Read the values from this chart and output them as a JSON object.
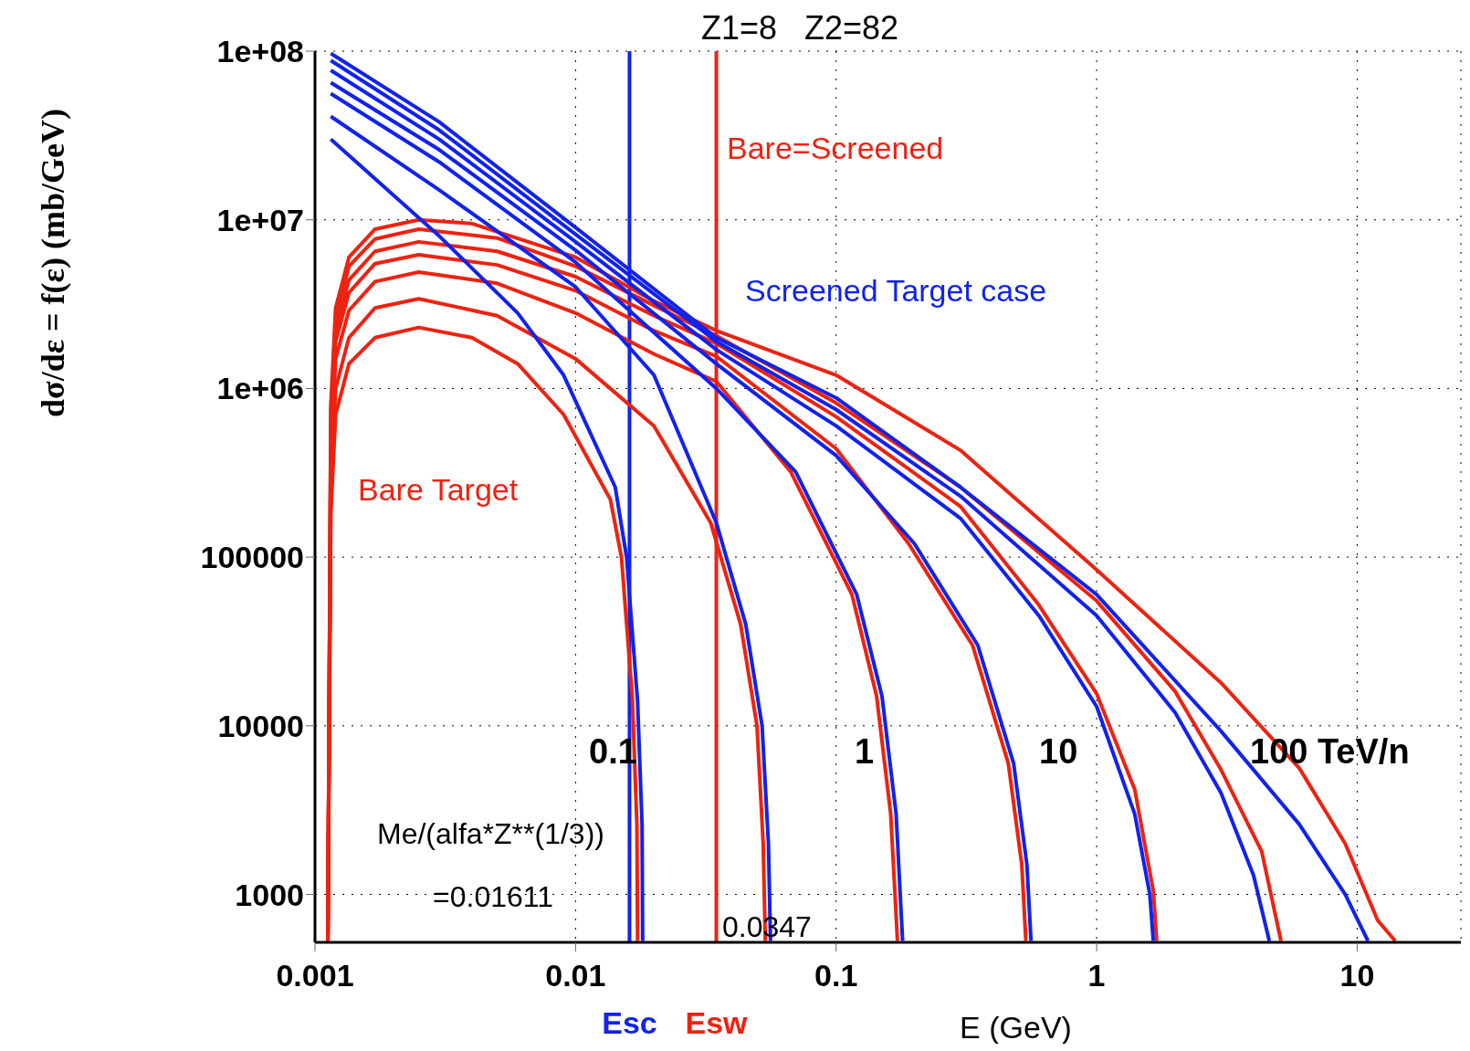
{
  "chart_data": {
    "type": "line",
    "title": "Z1=8   Z2=82",
    "xlabel": "E (GeV)",
    "ylabel": "dσ/dε = f(ε) (mb/GeV)",
    "log": "xy",
    "grid": true,
    "marker": "none",
    "line_style": "solid",
    "xlim": [
      0.001,
      25
    ],
    "ylim": [
      520,
      100000000
    ],
    "xticks": [
      0.001,
      0.01,
      0.1,
      1,
      10
    ],
    "yticks": [
      {
        "value": 100000000,
        "label": "1e+08"
      },
      {
        "value": 10000000,
        "label": "1e+07"
      },
      {
        "value": 1000000,
        "label": "1e+06"
      },
      100000,
      10000,
      1000
    ],
    "series": [
      {
        "color": "#ee2211",
        "x": [
          0.00112,
          0.00115,
          0.0012,
          0.00135,
          0.0017,
          0.0025,
          0.004,
          0.006,
          0.009,
          0.0136,
          0.015,
          0.0165,
          0.0172,
          0.0173
        ],
        "values": [
          530,
          180000,
          700000,
          1400000,
          2000000,
          2300000,
          2000000,
          1400000,
          700000,
          220000,
          100000,
          15000,
          2600,
          530
        ]
      },
      {
        "color": "#ee2211",
        "x": [
          0.00112,
          0.00115,
          0.0012,
          0.00135,
          0.0017,
          0.0025,
          0.005,
          0.01,
          0.02,
          0.033,
          0.043,
          0.0497,
          0.0525,
          0.0535
        ],
        "values": [
          530,
          270000,
          1000000,
          2000000,
          3000000,
          3400000,
          2700000,
          1500000,
          600000,
          160000,
          40000,
          10000,
          2000,
          530
        ]
      },
      {
        "color": "#ee2211",
        "x": [
          0.00112,
          0.00115,
          0.0012,
          0.00135,
          0.0017,
          0.0025,
          0.005,
          0.01,
          0.02,
          0.0347,
          0.067,
          0.115,
          0.143,
          0.162,
          0.172
        ],
        "values": [
          530,
          390000,
          1500000,
          2900000,
          4300000,
          4900000,
          4200000,
          2800000,
          1600000,
          1100000,
          320000,
          60000,
          15000,
          3000,
          530
        ]
      },
      {
        "color": "#ee2211",
        "x": [
          0.00112,
          0.00115,
          0.0012,
          0.00135,
          0.0017,
          0.0025,
          0.005,
          0.01,
          0.02,
          0.0347,
          0.1,
          0.19,
          0.334,
          0.458,
          0.516,
          0.535
        ],
        "values": [
          530,
          500000,
          1900000,
          3700000,
          5500000,
          6200000,
          5400000,
          3800000,
          2200000,
          1550000,
          440000,
          120000,
          30000,
          6000,
          1500,
          530
        ]
      },
      {
        "color": "#ee2211",
        "x": [
          0.00112,
          0.00115,
          0.0012,
          0.00135,
          0.0017,
          0.0025,
          0.005,
          0.01,
          0.02,
          0.0347,
          0.1,
          0.3,
          0.6,
          1,
          1.4,
          1.65,
          1.7
        ],
        "values": [
          530,
          590000,
          2200000,
          4400000,
          6500000,
          7400000,
          6500000,
          4600000,
          2700000,
          1850000,
          680000,
          200000,
          52000,
          15500,
          4200,
          1050,
          530
        ]
      },
      {
        "color": "#ee2211",
        "x": [
          0.00112,
          0.00115,
          0.0012,
          0.00135,
          0.0017,
          0.0025,
          0.005,
          0.01,
          0.02,
          0.0347,
          0.1,
          0.3,
          1,
          2,
          3,
          4.3,
          5.1
        ],
        "values": [
          530,
          700000,
          2600000,
          5300000,
          7700000,
          8800000,
          7800000,
          5300000,
          3100000,
          2050000,
          820000,
          260000,
          55000,
          16000,
          5500,
          1800,
          530
        ]
      },
      {
        "color": "#ee2211",
        "x": [
          0.00112,
          0.00115,
          0.0012,
          0.00135,
          0.0017,
          0.0025,
          0.004,
          0.01,
          0.02,
          0.0347,
          0.1,
          0.3,
          1,
          3,
          6,
          9,
          12,
          14
        ],
        "values": [
          530,
          800000,
          3000000,
          6000000,
          8800000,
          10000000,
          9500000,
          6000000,
          3300000,
          2200000,
          1200000,
          430000,
          84000,
          18000,
          5600,
          2000,
          700,
          530
        ]
      },
      {
        "color": "#1122ee",
        "x": [
          0.00115,
          0.003,
          0.006,
          0.009,
          0.0142,
          0.0157,
          0.0173,
          0.018,
          0.0181
        ],
        "values": [
          30000000,
          8000000,
          2800000,
          1200000,
          260000,
          100000,
          14000,
          2600,
          530
        ]
      },
      {
        "color": "#1122ee",
        "x": [
          0.00115,
          0.003,
          0.01,
          0.02,
          0.0347,
          0.045,
          0.052,
          0.055,
          0.056
        ],
        "values": [
          41000000,
          15000000,
          4000000,
          1200000,
          160000,
          40000,
          10000,
          2000,
          530
        ]
      },
      {
        "color": "#1122ee",
        "x": [
          0.00115,
          0.003,
          0.01,
          0.0347,
          0.07,
          0.12,
          0.15,
          0.17,
          0.18
        ],
        "values": [
          56000000,
          22000000,
          5600000,
          1000000,
          320000,
          60000,
          15000,
          3000,
          530
        ]
      },
      {
        "color": "#1122ee",
        "x": [
          0.00115,
          0.003,
          0.01,
          0.0347,
          0.1,
          0.2,
          0.35,
          0.48,
          0.54,
          0.56
        ],
        "values": [
          65000000,
          26000000,
          6600000,
          1400000,
          400000,
          120000,
          30000,
          6000,
          1500,
          530
        ]
      },
      {
        "color": "#1122ee",
        "x": [
          0.00115,
          0.003,
          0.01,
          0.0347,
          0.1,
          0.3,
          0.6,
          1,
          1.4,
          1.6,
          1.65
        ],
        "values": [
          77000000,
          30000000,
          7400000,
          1700000,
          600000,
          170000,
          45000,
          13000,
          3000,
          1000,
          530
        ]
      },
      {
        "color": "#1122ee",
        "x": [
          0.00115,
          0.003,
          0.01,
          0.0347,
          0.1,
          0.3,
          1,
          2,
          3,
          4,
          4.6
        ],
        "values": [
          88000000,
          34000000,
          8200000,
          1900000,
          750000,
          230000,
          45000,
          12000,
          4000,
          1300,
          530
        ]
      },
      {
        "color": "#1122ee",
        "x": [
          0.00115,
          0.003,
          0.01,
          0.0347,
          0.1,
          0.3,
          1,
          3,
          6,
          9,
          11
        ],
        "values": [
          97000000,
          38000000,
          9000000,
          2000000,
          880000,
          260000,
          60000,
          9300,
          2600,
          1000,
          530
        ]
      }
    ],
    "ref_lines": [
      {
        "axis": "x",
        "value": 0.01611,
        "label": "Esc",
        "color": "#1122ee"
      },
      {
        "axis": "x",
        "value": 0.0347,
        "label": "Esw",
        "color": "#ee2211"
      }
    ],
    "annotations": [
      "Bare=Screened",
      "Screened Target case",
      "Bare Target",
      "0.1",
      "1",
      "10",
      "100 TeV/n",
      "Me/(alfa*Z**(1/3))",
      "=0.01611",
      "0.0347"
    ]
  }
}
